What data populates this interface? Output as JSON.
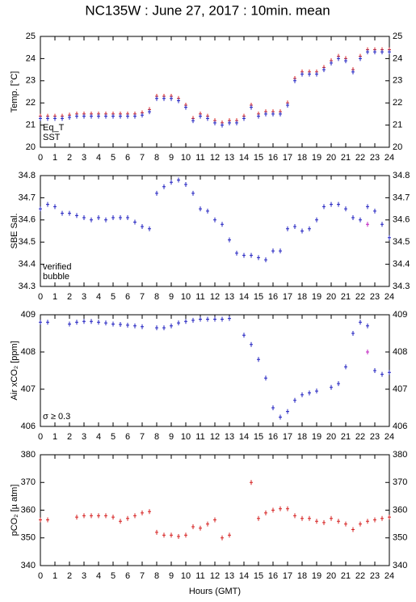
{
  "chart_data": [
    {
      "type": "scatter",
      "title": "NC135W : June 27, 2017 : 10min. mean",
      "y_label": "Temp. [°C]",
      "xlim": [
        0,
        24
      ],
      "xticks": [
        0,
        1,
        2,
        3,
        4,
        5,
        6,
        7,
        8,
        9,
        10,
        11,
        12,
        13,
        14,
        15,
        16,
        17,
        18,
        19,
        20,
        21,
        22,
        23,
        24
      ],
      "ylim": [
        20,
        25
      ],
      "yticks": [
        20,
        21,
        22,
        23,
        24,
        25
      ],
      "legend": "lower left",
      "x": [
        0,
        0.5,
        1,
        1.5,
        2,
        2.5,
        3,
        3.5,
        4,
        4.5,
        5,
        5.5,
        6,
        6.5,
        7,
        7.5,
        8,
        8.5,
        9,
        9.5,
        10,
        10.5,
        11,
        11.5,
        12,
        12.5,
        13,
        13.5,
        14,
        14.5,
        15,
        15.5,
        16,
        16.5,
        17,
        17.5,
        18,
        18.5,
        19,
        19.5,
        20,
        20.5,
        21,
        21.5,
        22,
        22.5,
        23,
        23.5,
        24
      ],
      "series": [
        {
          "name": "Eq_T",
          "color": "#d62020",
          "values": [
            21.4,
            21.4,
            21.4,
            21.4,
            21.45,
            21.5,
            21.5,
            21.5,
            21.5,
            21.5,
            21.5,
            21.5,
            21.5,
            21.5,
            21.55,
            21.7,
            22.3,
            22.3,
            22.3,
            22.2,
            21.9,
            21.3,
            21.5,
            21.4,
            21.2,
            21.1,
            21.2,
            21.2,
            21.4,
            21.9,
            21.5,
            21.6,
            21.6,
            21.6,
            22.0,
            23.1,
            23.4,
            23.4,
            23.4,
            23.6,
            23.9,
            24.1,
            24.0,
            23.5,
            24.1,
            24.4,
            24.4,
            24.4,
            24.4
          ]
        },
        {
          "name": "SST",
          "color": "#2020c0",
          "values": [
            21.3,
            21.3,
            21.3,
            21.3,
            21.35,
            21.4,
            21.4,
            21.4,
            21.4,
            21.4,
            21.4,
            21.4,
            21.4,
            21.4,
            21.45,
            21.6,
            22.2,
            22.2,
            22.2,
            22.1,
            21.8,
            21.2,
            21.4,
            21.3,
            21.1,
            21.0,
            21.1,
            21.1,
            21.3,
            21.8,
            21.4,
            21.5,
            21.5,
            21.5,
            21.9,
            23.0,
            23.3,
            23.3,
            23.3,
            23.5,
            23.8,
            24.0,
            23.9,
            23.4,
            24.0,
            24.3,
            24.3,
            24.3,
            24.3
          ]
        }
      ]
    },
    {
      "type": "scatter",
      "y_label": "SBE Sal.",
      "xlim": [
        0,
        24
      ],
      "xticks": [
        0,
        1,
        2,
        3,
        4,
        5,
        6,
        7,
        8,
        9,
        10,
        11,
        12,
        13,
        14,
        15,
        16,
        17,
        18,
        19,
        20,
        21,
        22,
        23,
        24
      ],
      "ylim": [
        34.3,
        34.8
      ],
      "yticks": [
        34.3,
        34.4,
        34.5,
        34.6,
        34.7,
        34.8
      ],
      "legend": "lower left",
      "x": [
        0,
        0.5,
        1,
        1.5,
        2,
        2.5,
        3,
        3.5,
        4,
        4.5,
        5,
        5.5,
        6,
        6.5,
        7,
        7.5,
        8,
        8.5,
        9,
        9.5,
        10,
        10.5,
        11,
        11.5,
        12,
        12.5,
        13,
        13.5,
        14,
        14.5,
        15,
        15.5,
        16,
        16.5,
        17,
        17.5,
        18,
        18.5,
        19,
        19.5,
        20,
        20.5,
        21,
        21.5,
        22,
        22.5,
        23,
        23.5,
        24
      ],
      "series": [
        {
          "name": "verified",
          "color": "#2020c0",
          "values": [
            34.65,
            34.67,
            34.66,
            34.63,
            34.63,
            34.62,
            34.61,
            34.6,
            34.61,
            34.6,
            34.61,
            34.61,
            34.61,
            34.59,
            34.57,
            34.56,
            34.72,
            34.75,
            34.77,
            34.78,
            34.76,
            34.72,
            34.65,
            34.64,
            34.6,
            34.58,
            34.51,
            34.45,
            34.44,
            34.44,
            34.43,
            34.42,
            34.46,
            34.46,
            34.56,
            34.57,
            34.55,
            34.56,
            34.6,
            34.66,
            34.67,
            34.67,
            34.65,
            34.61,
            34.6,
            34.66,
            34.64,
            34.58,
            34.52
          ]
        },
        {
          "name": "bubble",
          "color": "#c020c0",
          "values": [
            null,
            null,
            null,
            null,
            null,
            null,
            null,
            null,
            null,
            null,
            null,
            null,
            null,
            null,
            null,
            null,
            null,
            null,
            null,
            null,
            null,
            null,
            null,
            null,
            null,
            null,
            null,
            null,
            null,
            null,
            null,
            null,
            null,
            null,
            null,
            null,
            null,
            null,
            null,
            null,
            null,
            null,
            null,
            null,
            null,
            34.58,
            null,
            null,
            null
          ]
        }
      ]
    },
    {
      "type": "scatter",
      "y_label": "Air xCO₂ [ppm]",
      "xlim": [
        0,
        24
      ],
      "xticks": [
        0,
        1,
        2,
        3,
        4,
        5,
        6,
        7,
        8,
        9,
        10,
        11,
        12,
        13,
        14,
        15,
        16,
        17,
        18,
        19,
        20,
        21,
        22,
        23,
        24
      ],
      "ylim": [
        406,
        409
      ],
      "yticks": [
        406,
        407,
        408,
        409
      ],
      "legend": "lower left",
      "x": [
        0,
        0.5,
        1,
        1.5,
        2,
        2.5,
        3,
        3.5,
        4,
        4.5,
        5,
        5.5,
        6,
        6.5,
        7,
        7.5,
        8,
        8.5,
        9,
        9.5,
        10,
        10.5,
        11,
        11.5,
        12,
        12.5,
        13,
        13.5,
        14,
        14.5,
        15,
        15.5,
        16,
        16.5,
        17,
        17.5,
        18,
        18.5,
        19,
        19.5,
        20,
        20.5,
        21,
        21.5,
        22,
        22.5,
        23,
        23.5,
        24
      ],
      "series": [
        {
          "name": null,
          "color": "#2020c0",
          "values": [
            408.8,
            408.8,
            null,
            null,
            408.75,
            408.8,
            408.82,
            408.82,
            408.8,
            408.78,
            408.75,
            408.74,
            408.72,
            408.7,
            408.68,
            null,
            408.65,
            408.65,
            408.7,
            408.78,
            408.82,
            408.85,
            408.88,
            408.88,
            408.88,
            408.88,
            408.9,
            null,
            408.45,
            408.2,
            407.8,
            407.3,
            406.5,
            406.25,
            406.4,
            406.7,
            406.85,
            406.9,
            406.95,
            null,
            407.05,
            407.15,
            407.6,
            408.5,
            408.8,
            408.7,
            407.5,
            407.4,
            407.45
          ]
        },
        {
          "name": "σ ≥ 0.3",
          "color": "#c020c0",
          "values": [
            null,
            null,
            null,
            null,
            null,
            null,
            null,
            null,
            null,
            null,
            null,
            null,
            null,
            null,
            null,
            null,
            null,
            null,
            null,
            null,
            null,
            null,
            null,
            null,
            null,
            null,
            null,
            null,
            null,
            null,
            null,
            null,
            null,
            null,
            null,
            null,
            null,
            null,
            null,
            null,
            null,
            null,
            null,
            null,
            null,
            408.0,
            null,
            null,
            null
          ]
        }
      ]
    },
    {
      "type": "scatter",
      "y_label": "pCO₂ [µ atm]",
      "x_label": "Hours (GMT)",
      "xlim": [
        0,
        24
      ],
      "xticks": [
        0,
        1,
        2,
        3,
        4,
        5,
        6,
        7,
        8,
        9,
        10,
        11,
        12,
        13,
        14,
        15,
        16,
        17,
        18,
        19,
        20,
        21,
        22,
        23,
        24
      ],
      "ylim": [
        340,
        380
      ],
      "yticks": [
        340,
        350,
        360,
        370,
        380
      ],
      "x": [
        0,
        0.5,
        1,
        1.5,
        2,
        2.5,
        3,
        3.5,
        4,
        4.5,
        5,
        5.5,
        6,
        6.5,
        7,
        7.5,
        8,
        8.5,
        9,
        9.5,
        10,
        10.5,
        11,
        11.5,
        12,
        12.5,
        13,
        13.5,
        14,
        14.5,
        15,
        15.5,
        16,
        16.5,
        17,
        17.5,
        18,
        18.5,
        19,
        19.5,
        20,
        20.5,
        21,
        21.5,
        22,
        22.5,
        23,
        23.5,
        24
      ],
      "series": [
        {
          "name": null,
          "color": "#d62020",
          "values": [
            356.5,
            356.5,
            null,
            null,
            null,
            357.5,
            358,
            358,
            358,
            358,
            357.5,
            356,
            357,
            358,
            359,
            359.5,
            352,
            351,
            351,
            350.5,
            351,
            354,
            353.5,
            355,
            356.5,
            350,
            351,
            null,
            null,
            370,
            357,
            359,
            360,
            360.5,
            360.5,
            358,
            357,
            357,
            356,
            355.5,
            357,
            356,
            355,
            353,
            355,
            356,
            356.5,
            357,
            357.5
          ]
        }
      ]
    }
  ]
}
